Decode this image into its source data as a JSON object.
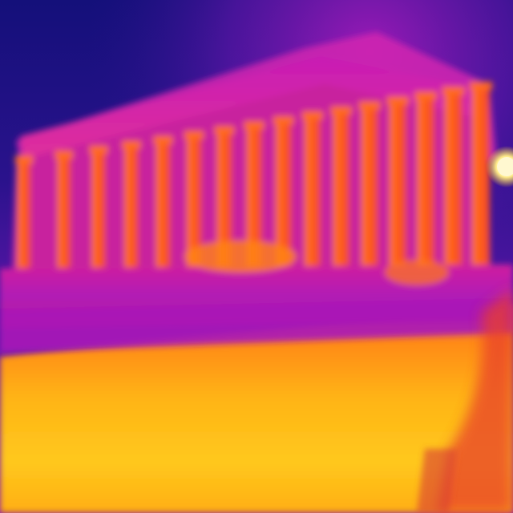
{
  "image": {
    "kind": "thermal-infrared-photo",
    "subject": "colonnaded-temple-ruins",
    "palette": {
      "cold": "#1c1478",
      "cool": "#6a18b8",
      "mid": "#c21fb5",
      "warm": "#ff5a1e",
      "hot": "#ff9a12",
      "hottest": "#ffd22a",
      "peak": "#fff6b0"
    },
    "column_count": 16
  }
}
